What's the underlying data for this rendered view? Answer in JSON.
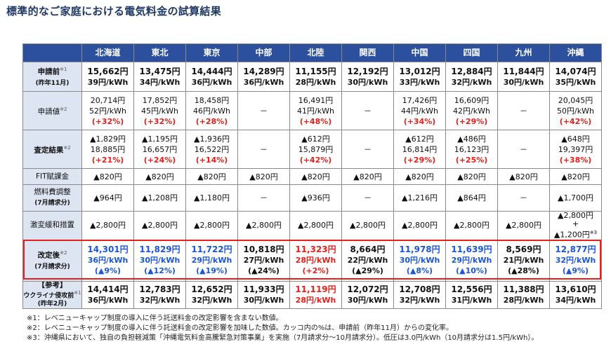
{
  "title": "標準的なご家庭における電気料金の試算結果",
  "regions": [
    "北海道",
    "東北",
    "東京",
    "中部",
    "北陸",
    "関西",
    "中国",
    "四国",
    "九州",
    "沖縄"
  ],
  "rows": {
    "shinseimae": {
      "label": "申請前",
      "note": "※1",
      "sub": "(昨年11月)",
      "cells": [
        [
          "15,662円",
          "39円/kWh"
        ],
        [
          "13,475円",
          "34円/kWh"
        ],
        [
          "14,444円",
          "36円/kWh"
        ],
        [
          "14,289円",
          "36円/kWh"
        ],
        [
          "11,155円",
          "28円/kWh"
        ],
        [
          "12,192円",
          "30円/kWh"
        ],
        [
          "13,012円",
          "33円/kWh"
        ],
        [
          "12,884円",
          "32円/kWh"
        ],
        [
          "11,844円",
          "30円/kWh"
        ],
        [
          "14,074円",
          "35円/kWh"
        ]
      ]
    },
    "shinseichi": {
      "label": "申請値",
      "note": "※2",
      "cells": [
        [
          "20,714円",
          "52円/kWh",
          "(+32%)"
        ],
        [
          "17,852円",
          "45円/kWh",
          "(+32%)"
        ],
        [
          "18,458円",
          "46円/kWh",
          "(+28%)"
        ],
        [
          "－"
        ],
        [
          "16,491円",
          "41円/kWh",
          "(+48%)"
        ],
        [
          "－"
        ],
        [
          "17,426円",
          "44円/kWh",
          "(+34%)"
        ],
        [
          "16,609円",
          "42円/kWh",
          "(+29%)"
        ],
        [
          "－"
        ],
        [
          "20,045円",
          "50円/kWh",
          "(+42%)"
        ]
      ]
    },
    "satei": {
      "label": "査定結果",
      "note": "※2",
      "cells": [
        [
          "▲1,829円",
          "18,885円",
          "(+21%)"
        ],
        [
          "▲1,195円",
          "16,657円",
          "(+24%)"
        ],
        [
          "▲1,936円",
          "16,522円",
          "(+14%)"
        ],
        [
          "－"
        ],
        [
          "▲612円",
          "15,879円",
          "(+42%)"
        ],
        [
          "－"
        ],
        [
          "▲612円",
          "16,814円",
          "(+29%)"
        ],
        [
          "▲486円",
          "16,123円",
          "(+25%)"
        ],
        [
          "－"
        ],
        [
          "▲648円",
          "19,397円",
          "(+38%)"
        ]
      ]
    },
    "fit": {
      "label": "FIT賦課金",
      "cells": [
        "▲820円",
        "▲820円",
        "▲820円",
        "▲820円",
        "▲820円",
        "▲820円",
        "▲820円",
        "▲820円",
        "▲820円",
        "▲820円"
      ]
    },
    "fuel": {
      "label": "燃料費調整",
      "sub": "(7月請求分)",
      "cells": [
        "▲964円",
        "▲1,208円",
        "▲1,180円",
        "－",
        "▲936円",
        "－",
        "▲1,216円",
        "▲864円",
        "－",
        "▲1,700円"
      ]
    },
    "gekihen": {
      "label": "激変緩和措置",
      "cells": [
        "▲2,800円",
        "▲2,800円",
        "▲2,800円",
        "▲2,800円",
        "▲2,800円",
        "▲2,800円",
        "▲2,800円",
        "▲2,800円",
        "▲2,800円"
      ],
      "okinawa": [
        "▲2,800円",
        "+",
        "▲1,200円",
        "※3"
      ]
    },
    "kaiteigo": {
      "label": "改定後",
      "note": "※2",
      "sub": "(7月請求分)",
      "cells": [
        [
          "14,301円",
          "36円/kWh",
          "(▲9%)"
        ],
        [
          "11,829円",
          "30円/kWh",
          "(▲12%)"
        ],
        [
          "11,722円",
          "29円/kWh",
          "(▲19%)"
        ],
        [
          "10,818円",
          "27円/kWh",
          "(▲24%)"
        ],
        [
          "11,323円",
          "28円/kWh",
          "(+2%)"
        ],
        [
          "8,664円",
          "22円/kWh",
          "(▲29%)"
        ],
        [
          "11,978円",
          "30円/kWh",
          "(▲8%)"
        ],
        [
          "11,639円",
          "29円/kWh",
          "(▲10%)"
        ],
        [
          "8,569円",
          "21円/kWh",
          "(▲28%)"
        ],
        [
          "12,877円",
          "32円/kWh",
          "(▲9%)"
        ]
      ]
    },
    "sankou": {
      "label": "【参考】",
      "label2": "ウクライナ侵攻前",
      "note": "※1",
      "sub": "(昨年2月)",
      "cells": [
        [
          "14,414円",
          "36円/kWh"
        ],
        [
          "12,783円",
          "32円/kWh"
        ],
        [
          "12,652円",
          "32円/kWh"
        ],
        [
          "11,933円",
          "30円/kWh"
        ],
        [
          "11,119円",
          "28円/kWh"
        ],
        [
          "12,072円",
          "30円/kWh"
        ],
        [
          "12,708円",
          "32円/kWh"
        ],
        [
          "12,556円",
          "31円/kWh"
        ],
        [
          "11,388円",
          "28円/kWh"
        ],
        [
          "13,610円",
          "34円/kWh"
        ]
      ]
    }
  },
  "footnotes": [
    "※1：レベニューキャップ制度の導入に伴う託送料金の改定影響を含まない数値。",
    "※2：レベニューキャップ制度の導入に伴う託送料金の改定影響を加味した数値。カッコ内の%は、申請前（昨年11月）からの変化率。",
    "※3：沖縄県において、独自の負担軽減策「沖縄電気料金高騰緊急対策事業」を実施（7月請求分～10月請求分）。低圧は3.0円/kWh（10月請求分は1.5円/kWh）。"
  ],
  "colors": {
    "header_blue": "#2c4f9e",
    "rowhead_bg": "#dde5f3",
    "decrease_blue": "#1a56d6",
    "increase_red": "#e8201b"
  }
}
